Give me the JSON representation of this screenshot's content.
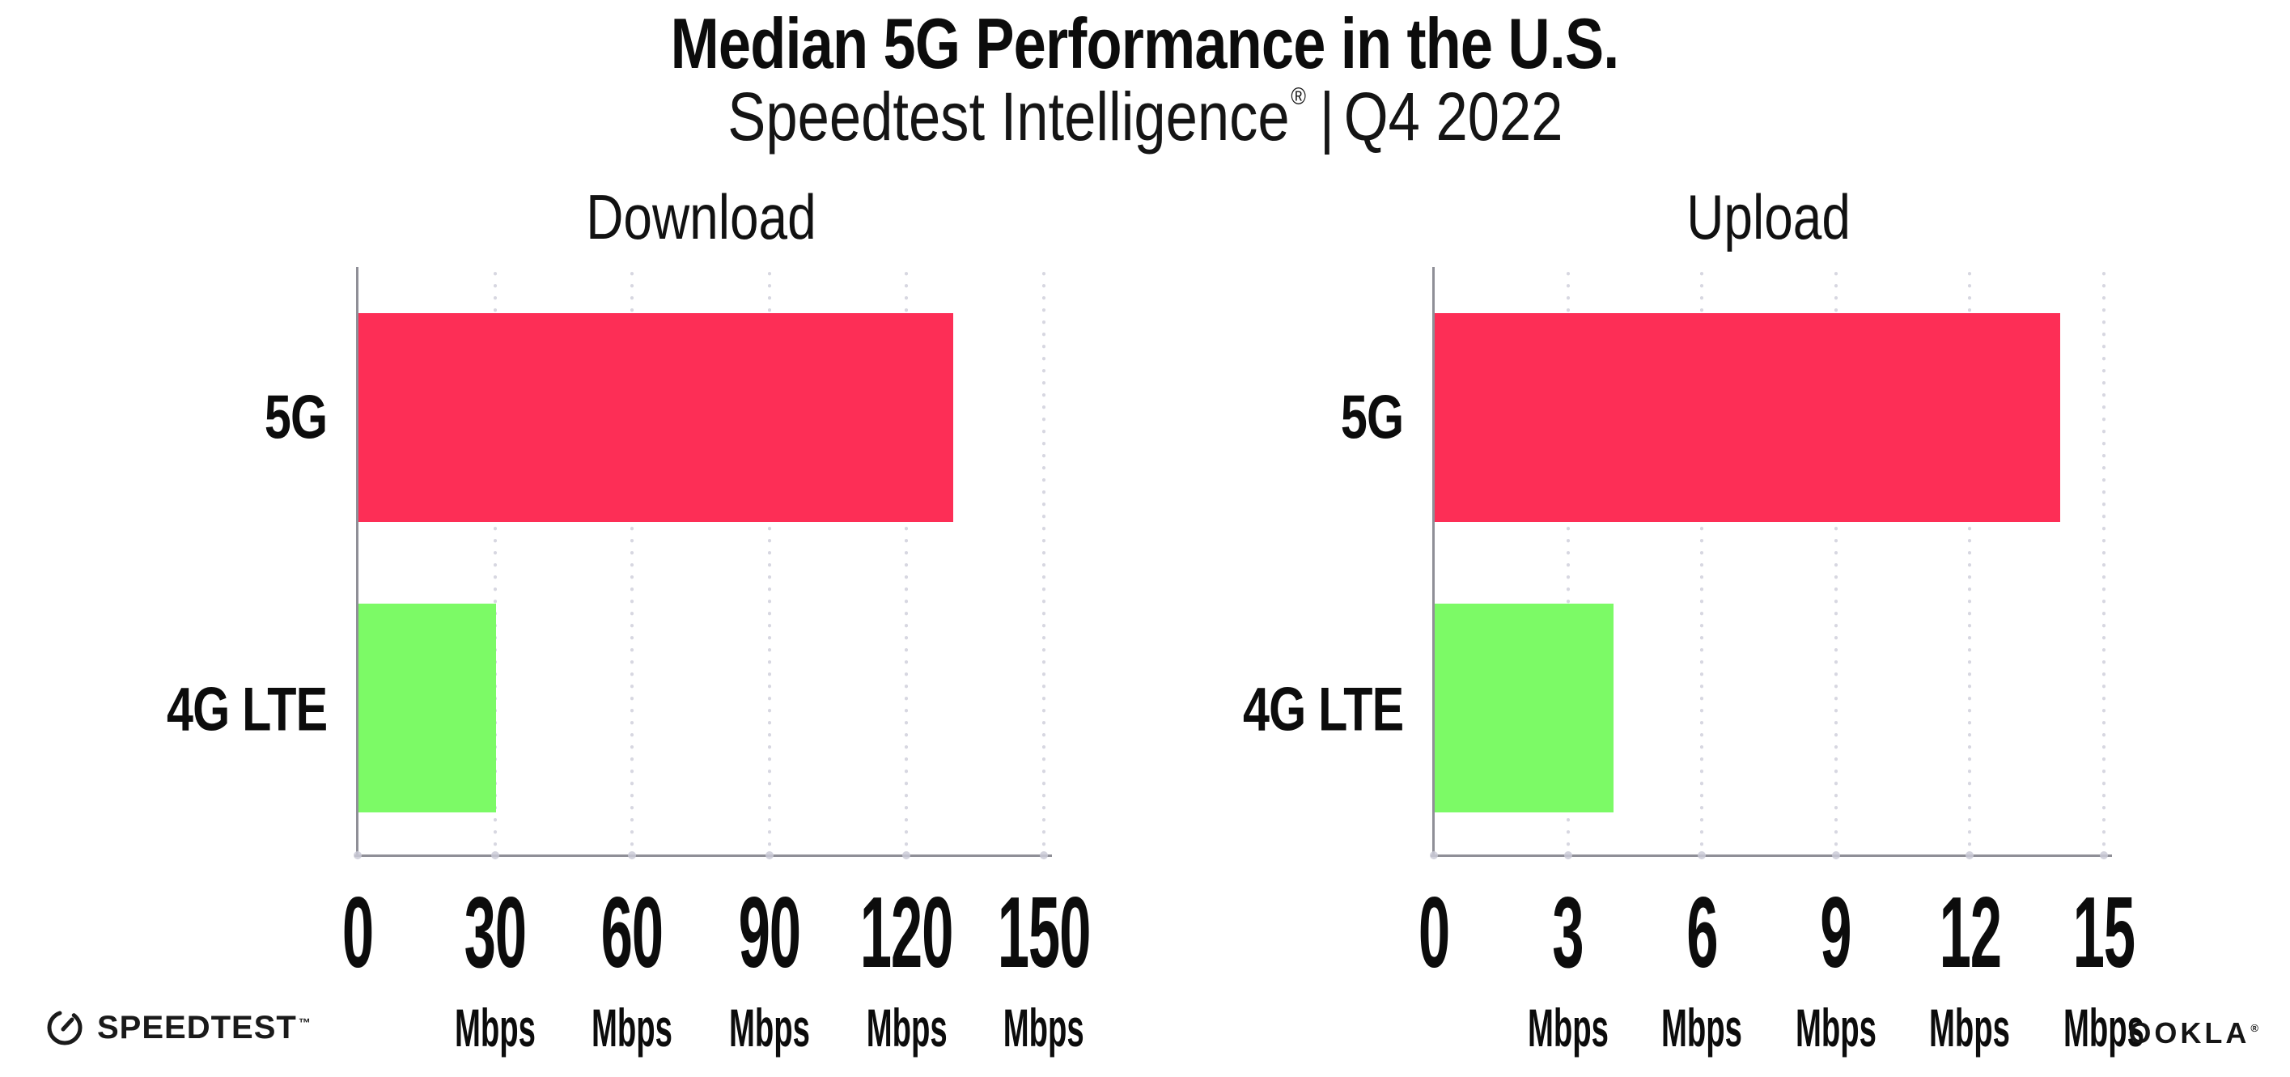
{
  "page": {
    "title": "Median 5G Performance in the U.S.",
    "subtitle_brand": "Speedtest Intelligence",
    "subtitle_reg": "®",
    "subtitle_sep": "|",
    "subtitle_period": "Q4 2022"
  },
  "colors": {
    "bar_5g": "#fd2e56",
    "bar_4g_lte": "#7cfa66",
    "axis": "#8f8f97",
    "gridline": "#d7d7e1",
    "text": "#0c0c0c"
  },
  "footer": {
    "speedtest_label": "SPEEDTEST",
    "speedtest_mark": "™",
    "ookla_label": "OOKLA",
    "ookla_mark": "®"
  },
  "chart_data": [
    {
      "type": "bar",
      "orientation": "horizontal",
      "title": "Download",
      "categories": [
        "5G",
        "4G LTE"
      ],
      "values": [
        130,
        30
      ],
      "unit": "Mbps",
      "xlim": [
        0,
        150
      ],
      "xticks": [
        0,
        30,
        60,
        90,
        120,
        150
      ],
      "series_colors": [
        "#fd2e56",
        "#7cfa66"
      ],
      "grid": "dotted-vertical",
      "legend": "none"
    },
    {
      "type": "bar",
      "orientation": "horizontal",
      "title": "Upload",
      "categories": [
        "5G",
        "4G LTE"
      ],
      "values": [
        14,
        4
      ],
      "unit": "Mbps",
      "xlim": [
        0,
        15
      ],
      "xticks": [
        0,
        3,
        6,
        9,
        12,
        15
      ],
      "series_colors": [
        "#fd2e56",
        "#7cfa66"
      ],
      "grid": "dotted-vertical",
      "legend": "none"
    }
  ]
}
